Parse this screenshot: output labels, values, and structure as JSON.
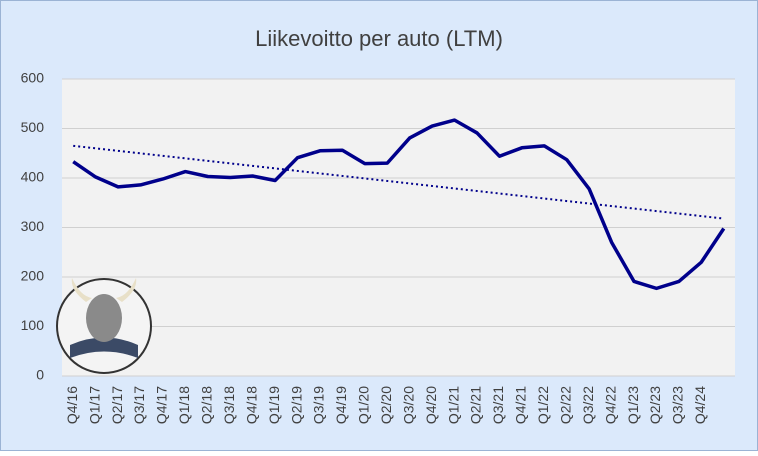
{
  "chart_data": {
    "type": "line",
    "title": "Liikevoitto per auto (LTM)",
    "categories": [
      "Q4/16",
      "Q1/17",
      "Q2/17",
      "Q3/17",
      "Q4/17",
      "Q1/18",
      "Q2/18",
      "Q3/18",
      "Q4/18",
      "Q1/19",
      "Q2/19",
      "Q3/19",
      "Q4/19",
      "Q1/20",
      "Q2/20",
      "Q3/20",
      "Q4/20",
      "Q1/21",
      "Q2/21",
      "Q3/21",
      "Q4/21",
      "Q1/22",
      "Q2/22",
      "Q3/22",
      "Q4/22",
      "Q1/23",
      "Q2/23",
      "Q3/23",
      "Q4/24",
      null
    ],
    "series": [
      {
        "color": "#00008b",
        "values": [
          433,
          402,
          382,
          386,
          398,
          413,
          403,
          401,
          404,
          395,
          441,
          455,
          456,
          429,
          430,
          481,
          505,
          517,
          491,
          444,
          461,
          465,
          437,
          378,
          270,
          191,
          177,
          191,
          230,
          298
        ]
      }
    ],
    "trend": {
      "color": "#00008b",
      "values": [
        465,
        318
      ]
    },
    "ylim": [
      0,
      600
    ],
    "yticks": [
      0,
      100,
      200,
      300,
      400,
      500,
      600
    ],
    "grid": true
  }
}
